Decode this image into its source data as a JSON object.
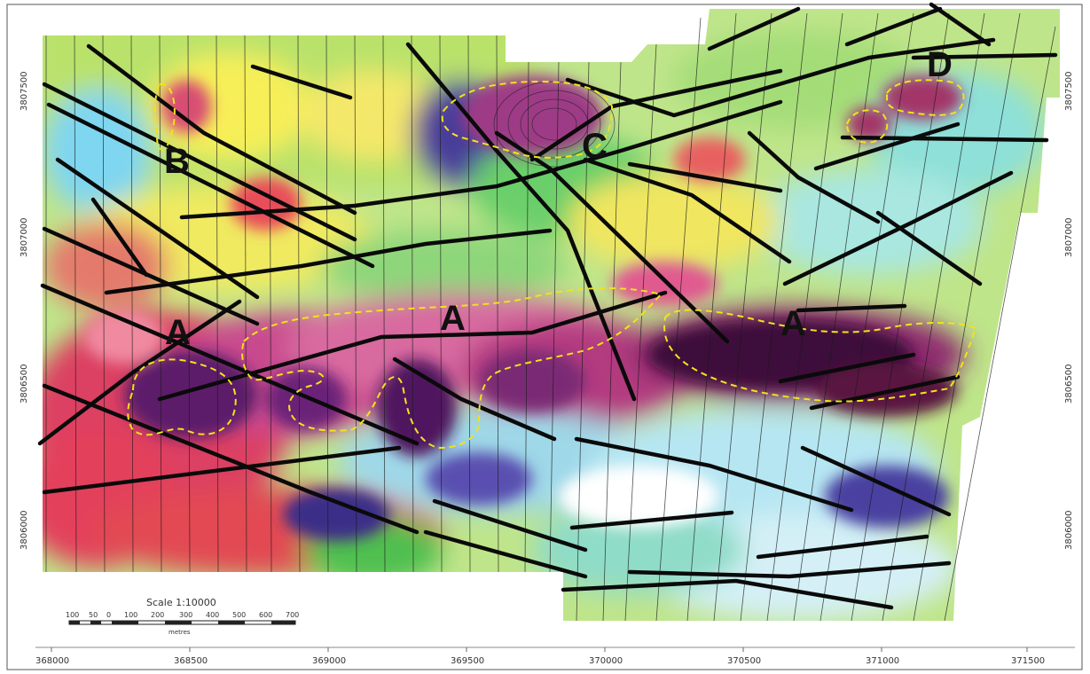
{
  "map": {
    "markers": [
      {
        "label": "A"
      },
      {
        "label": "A"
      },
      {
        "label": "A"
      },
      {
        "label": "B"
      },
      {
        "label": "C"
      },
      {
        "label": "D"
      }
    ],
    "x_axis_ticks": [
      "368000",
      "368500",
      "369000",
      "369500",
      "370000",
      "370500",
      "371000",
      "371500"
    ],
    "y_axis_ticks_left": [
      "3807500",
      "3807000",
      "3806500",
      "3806000"
    ],
    "y_axis_ticks_right": [
      "3807500",
      "3807000",
      "3806500",
      "3806000"
    ],
    "scale": {
      "label": "Scale 1:10000",
      "unit": "metres",
      "ticks": [
        "100",
        "50",
        "0",
        "100",
        "200",
        "300",
        "400",
        "500",
        "600",
        "700"
      ]
    },
    "legend_colors": {
      "high": "#5b1a6b",
      "mid_high": "#e0306a",
      "mid": "#f2ee3a",
      "mid_low": "#4fbf4f",
      "low": "#7fd6f0"
    }
  }
}
